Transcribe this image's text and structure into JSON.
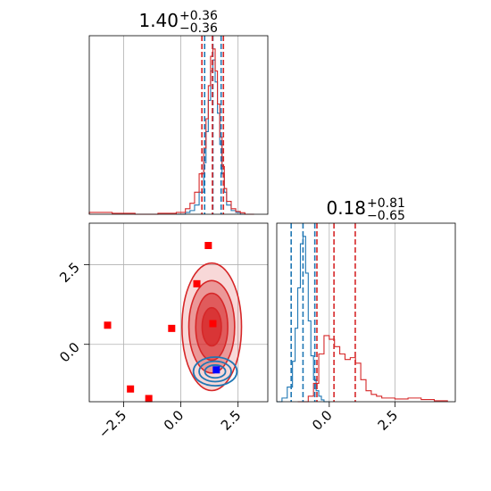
{
  "chart_data": [
    {
      "panel": "marginal-param-1",
      "type": "histogram",
      "title": {
        "value": "1.40",
        "plus": "+0.36",
        "minus": "−0.36"
      },
      "xlim": [
        -4.0,
        3.8
      ],
      "grid": true,
      "series": [
        {
          "color": "#1f77b4",
          "bins": [
            -0.2,
            0.2,
            0.4,
            0.6,
            0.8,
            1.0,
            1.1,
            1.2,
            1.3,
            1.4,
            1.5,
            1.6,
            1.7,
            1.8,
            1.9,
            2.0,
            2.2,
            2.4,
            2.6,
            2.8
          ],
          "values": [
            0.0,
            0.01,
            0.02,
            0.05,
            0.12,
            0.28,
            0.45,
            0.62,
            0.78,
            0.84,
            0.72,
            0.55,
            0.38,
            0.22,
            0.12,
            0.05,
            0.02,
            0.01,
            0.0
          ],
          "quantiles": [
            1.04,
            1.4,
            1.76
          ]
        },
        {
          "color": "#d62728",
          "bins": [
            -4.0,
            -3.0,
            -2.0,
            -1.0,
            -0.2,
            0.2,
            0.4,
            0.6,
            0.8,
            1.0,
            1.1,
            1.2,
            1.3,
            1.4,
            1.5,
            1.6,
            1.7,
            1.8,
            1.9,
            2.0,
            2.2,
            2.4,
            2.6,
            2.8,
            3.2
          ],
          "values": [
            0.01,
            0.005,
            0.0,
            0.005,
            0.01,
            0.03,
            0.06,
            0.12,
            0.22,
            0.36,
            0.52,
            0.7,
            0.86,
            0.9,
            0.78,
            0.6,
            0.42,
            0.26,
            0.14,
            0.07,
            0.03,
            0.015,
            0.008,
            0.0
          ],
          "quantiles": [
            0.92,
            1.38,
            1.86
          ]
        }
      ]
    },
    {
      "panel": "marginal-param-2",
      "type": "histogram",
      "title": {
        "value": "0.18",
        "plus": "+0.81",
        "minus": "−0.65"
      },
      "xlim": [
        -2.0,
        4.8
      ],
      "xticks": [
        "0.0",
        "2.5"
      ],
      "xtick_values": [
        0.0,
        2.5
      ],
      "grid": true,
      "series": [
        {
          "color": "#1f77b4",
          "bins": [
            -2.0,
            -1.8,
            -1.6,
            -1.4,
            -1.3,
            -1.2,
            -1.1,
            -1.0,
            -0.9,
            -0.8,
            -0.7,
            -0.6,
            -0.5,
            -0.4,
            -0.3,
            -0.2,
            0.0
          ],
          "values": [
            0.0,
            0.02,
            0.08,
            0.22,
            0.4,
            0.62,
            0.86,
            0.9,
            0.7,
            0.44,
            0.25,
            0.12,
            0.06,
            0.03,
            0.01,
            0.0
          ],
          "quantiles": [
            -1.45,
            -1.0,
            -0.55
          ]
        },
        {
          "color": "#d62728",
          "bins": [
            -1.2,
            -0.8,
            -0.6,
            -0.4,
            -0.2,
            0.0,
            0.2,
            0.4,
            0.6,
            0.8,
            1.0,
            1.2,
            1.4,
            1.6,
            1.8,
            2.0,
            2.5,
            3.0,
            3.5,
            4.0,
            4.5
          ],
          "values": [
            0.0,
            0.03,
            0.1,
            0.26,
            0.36,
            0.34,
            0.3,
            0.26,
            0.23,
            0.24,
            0.21,
            0.12,
            0.06,
            0.04,
            0.03,
            0.02,
            0.015,
            0.02,
            0.012,
            0.005
          ],
          "quantiles": [
            -0.47,
            0.18,
            0.99
          ]
        }
      ]
    },
    {
      "panel": "joint-param-1-vs-param-2",
      "type": "scatter",
      "xlim": [
        -4.0,
        3.8
      ],
      "ylim": [
        -1.8,
        3.8
      ],
      "xticks": [
        "−2.5",
        "0.0",
        "2.5"
      ],
      "xtick_values": [
        -2.5,
        0.0,
        2.5
      ],
      "yticks": [
        "0.0",
        "2.5"
      ],
      "ytick_values": [
        0.0,
        2.5
      ],
      "grid": true,
      "contours": [
        {
          "color": "#d62728",
          "center": [
            1.35,
            0.55
          ],
          "levels": [
            [
              1.3,
              2.0
            ],
            [
              1.0,
              1.45
            ],
            [
              0.7,
              1.05
            ],
            [
              0.42,
              0.6
            ]
          ]
        },
        {
          "color": "#1f77b4",
          "center": [
            1.5,
            -0.85
          ],
          "levels": [
            [
              0.95,
              0.45
            ],
            [
              0.7,
              0.32
            ],
            [
              0.45,
              0.2
            ]
          ]
        }
      ],
      "markers": [
        {
          "color": "#ff0000",
          "x": -3.2,
          "y": 0.6
        },
        {
          "color": "#ff0000",
          "x": -2.2,
          "y": -1.4
        },
        {
          "color": "#ff0000",
          "x": -1.4,
          "y": -1.7
        },
        {
          "color": "#ff0000",
          "x": -0.4,
          "y": 0.5
        },
        {
          "color": "#ff0000",
          "x": 0.7,
          "y": 1.9
        },
        {
          "color": "#ff0000",
          "x": 1.2,
          "y": 3.1
        },
        {
          "color": "#ff0000",
          "x": 1.4,
          "y": 0.65
        },
        {
          "color": "#0000ff",
          "x": 1.55,
          "y": -0.8
        }
      ]
    }
  ],
  "colors": {
    "blue": "#1f77b4",
    "red": "#d62728",
    "marker_red": "#ff0000",
    "marker_blue": "#0000ff",
    "grid": "#b0b0b0"
  }
}
